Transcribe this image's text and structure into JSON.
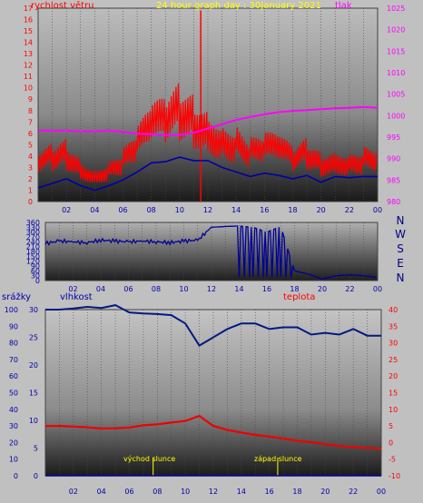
{
  "colors": {
    "wind": "#ff0000",
    "gust": "#0000aa",
    "pressure": "#ff00ff",
    "direction": "#000099",
    "humidity": "#001a80",
    "temperature": "#ee0000",
    "title": "#ffff00",
    "sun": "#ffff00",
    "axis_ticks": "#0000aa"
  },
  "chart_data": [
    {
      "type": "line",
      "title": "24 hour graph day : 30January 2021",
      "left_label": "rychlost větru",
      "right_label": "tlak",
      "x_ticks": [
        "02",
        "04",
        "06",
        "08",
        "10",
        "12",
        "14",
        "16",
        "18",
        "20",
        "22",
        "00"
      ],
      "y_left_ticks": [
        "0",
        "1",
        "2",
        "3",
        "4",
        "5",
        "6",
        "7",
        "8",
        "9",
        "10",
        "11",
        "12",
        "13",
        "14",
        "15",
        "16",
        "17"
      ],
      "y_right_ticks": [
        "980",
        "985",
        "990",
        "995",
        "1000",
        "1005",
        "1010",
        "1015",
        "1020",
        "1025"
      ],
      "ylim_left": [
        0,
        17
      ],
      "ylim_right": [
        980,
        1025
      ],
      "x_hours": [
        0,
        1,
        2,
        3,
        4,
        5,
        6,
        7,
        8,
        9,
        10,
        11,
        12,
        13,
        14,
        15,
        16,
        17,
        18,
        19,
        20,
        21,
        22,
        23,
        24
      ],
      "series": [
        {
          "axis": "left",
          "values": [
            3.2,
            3.8,
            4.2,
            3.0,
            2.3,
            2.8,
            3.5,
            4.8,
            6.5,
            6.8,
            7.8,
            7.2,
            6.5,
            5.5,
            5.2,
            4.2,
            4.5,
            4.5,
            3.6,
            4.2,
            3.4,
            3.7,
            3.5,
            3.7,
            3.8
          ]
        },
        {
          "axis": "left",
          "values": [
            1.2,
            1.6,
            2.0,
            1.4,
            1.0,
            1.4,
            1.9,
            2.6,
            3.4,
            3.5,
            3.9,
            3.6,
            3.6,
            3.0,
            2.6,
            2.2,
            2.5,
            2.3,
            2.0,
            2.3,
            1.7,
            2.2,
            2.1,
            2.2,
            2.2
          ]
        },
        {
          "axis": "right",
          "values": [
            996.5,
            996.5,
            996.5,
            996.3,
            996.3,
            996.5,
            996.2,
            995.8,
            995.7,
            995.5,
            995.5,
            996,
            997,
            998,
            999,
            999.7,
            1000.3,
            1000.8,
            1001.1,
            1001.3,
            1001.5,
            1001.7,
            1001.8,
            1002,
            1001.8
          ]
        }
      ],
      "annotations": [
        {
          "x": 11.5,
          "value": 16.8,
          "axis": "left"
        }
      ]
    },
    {
      "type": "line",
      "x_ticks": [
        "02",
        "04",
        "06",
        "08",
        "10",
        "12",
        "14",
        "16",
        "18",
        "20",
        "22",
        "00"
      ],
      "y_left_ticks": [
        "0",
        "30",
        "60",
        "90",
        "120",
        "150",
        "180",
        "210",
        "240",
        "270",
        "300",
        "330",
        "360"
      ],
      "y_right_labels": [
        "N",
        "W",
        "S",
        "E",
        "N"
      ],
      "ylim": [
        0,
        360
      ],
      "x_hours": [
        0,
        1,
        2,
        3,
        4,
        5,
        6,
        7,
        8,
        9,
        10,
        11,
        12,
        13,
        14,
        15,
        16,
        17,
        18,
        19,
        20,
        21,
        22,
        23,
        24
      ],
      "series": [
        {
          "values": [
            230,
            245,
            240,
            235,
            250,
            245,
            240,
            245,
            240,
            235,
            245,
            250,
            330,
            335,
            338,
            330,
            300,
            335,
            60,
            40,
            10,
            30,
            35,
            30,
            20
          ]
        }
      ]
    },
    {
      "type": "line",
      "left_label": "srážky",
      "humidity_label": "vlhkost",
      "right_label": "teplota",
      "sunrise_label": "východ slunce",
      "sunset_label": "západ slunce",
      "x_ticks": [
        "02",
        "04",
        "06",
        "08",
        "10",
        "12",
        "14",
        "16",
        "18",
        "20",
        "22",
        "00"
      ],
      "y_left_ticks": [
        "0",
        "10",
        "20",
        "30",
        "40",
        "50",
        "60",
        "70",
        "80",
        "90",
        "100"
      ],
      "y_hum_ticks": [
        "0",
        "5",
        "10",
        "15",
        "20",
        "25",
        "30"
      ],
      "y_right_ticks": [
        "-10",
        "-5",
        "0",
        "5",
        "10",
        "15",
        "20",
        "25",
        "30",
        "35",
        "40"
      ],
      "ylim_left": [
        0,
        100
      ],
      "ylim_hum": [
        0,
        30
      ],
      "ylim_right": [
        -10,
        40
      ],
      "x_hours": [
        0,
        1,
        2,
        3,
        4,
        5,
        6,
        7,
        8,
        9,
        10,
        11,
        12,
        13,
        14,
        15,
        16,
        17,
        18,
        19,
        20,
        21,
        22,
        23,
        24
      ],
      "series": [
        {
          "axis": "hum",
          "values": [
            30,
            30,
            30.2,
            30.5,
            30.3,
            30.8,
            29.5,
            29.3,
            29.2,
            29,
            27.5,
            23.5,
            25,
            26.5,
            27.5,
            27.5,
            26.5,
            26.8,
            26.8,
            25.5,
            25.8,
            25.5,
            26.5,
            25.3,
            25.3
          ]
        },
        {
          "axis": "right",
          "values": [
            5,
            5,
            4.8,
            4.6,
            4.2,
            4.3,
            4.5,
            5.2,
            5.5,
            6,
            6.5,
            8,
            5,
            3.8,
            3,
            2.3,
            1.8,
            1.2,
            0.5,
            0.1,
            -0.5,
            -1,
            -1.4,
            -1.6,
            -1.8
          ]
        },
        {
          "axis": "left",
          "values": [
            0,
            0,
            0,
            0,
            0,
            0,
            0,
            0,
            0,
            0,
            0,
            0,
            0,
            0,
            0,
            0,
            0,
            0,
            0,
            0,
            0,
            0,
            0,
            0,
            0
          ]
        }
      ],
      "sunrise_hour": 7.7,
      "sunset_hour": 16.6
    }
  ]
}
